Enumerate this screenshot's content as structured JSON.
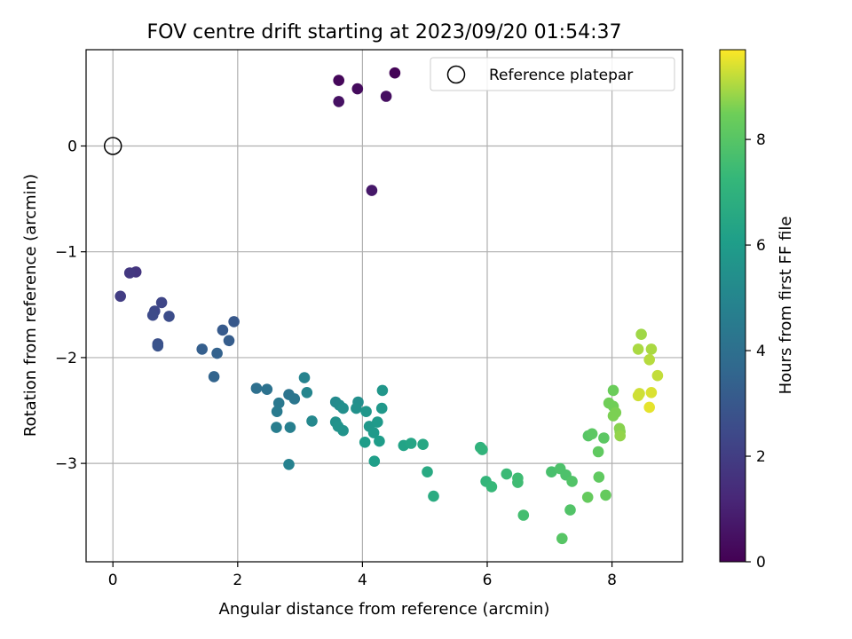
{
  "chart_data": {
    "type": "scatter",
    "title": "FOV centre drift starting at 2023/09/20 01:54:37",
    "xlabel": "Angular distance from reference (arcmin)",
    "ylabel": "Rotation from reference (arcmin)",
    "xlim": [
      -0.43,
      9.13
    ],
    "ylim": [
      -3.93,
      0.91
    ],
    "xticks": [
      0,
      2,
      4,
      6,
      8
    ],
    "yticks": [
      0,
      -1,
      -2,
      -3
    ],
    "xtick_labels": [
      "0",
      "2",
      "4",
      "6",
      "8"
    ],
    "ytick_labels": [
      "0",
      "−1",
      "−2",
      "−3"
    ],
    "grid": true,
    "legend": {
      "placement": "top-right",
      "entries": [
        "Reference platepar"
      ]
    },
    "reference_point": {
      "x": 0,
      "y": 0,
      "label": "Reference platepar"
    },
    "colorbar": {
      "label": "Hours from first FF file",
      "range": [
        0,
        9.7
      ],
      "ticks": [
        0,
        2,
        4,
        6,
        8
      ],
      "tick_labels": [
        "0",
        "2",
        "4",
        "6",
        "8"
      ],
      "colormap": "viridis"
    },
    "points": [
      [
        4.52,
        0.69,
        0.1
      ],
      [
        3.62,
        0.62,
        0.2
      ],
      [
        3.92,
        0.54,
        0.3
      ],
      [
        4.38,
        0.47,
        0.4
      ],
      [
        3.62,
        0.42,
        0.5
      ],
      [
        4.15,
        -0.42,
        0.7
      ],
      [
        0.37,
        -1.19,
        1.7
      ],
      [
        0.27,
        -1.2,
        1.8
      ],
      [
        0.12,
        -1.42,
        2.0
      ],
      [
        0.78,
        -1.48,
        2.3
      ],
      [
        0.67,
        -1.56,
        2.4
      ],
      [
        0.64,
        -1.6,
        2.5
      ],
      [
        0.9,
        -1.61,
        2.6
      ],
      [
        0.72,
        -1.87,
        2.7
      ],
      [
        0.72,
        -1.89,
        2.8
      ],
      [
        1.94,
        -1.66,
        3.0
      ],
      [
        1.76,
        -1.74,
        3.1
      ],
      [
        1.86,
        -1.84,
        3.2
      ],
      [
        1.43,
        -1.92,
        3.3
      ],
      [
        1.67,
        -1.96,
        3.4
      ],
      [
        1.62,
        -2.18,
        3.5
      ],
      [
        2.3,
        -2.29,
        4.0
      ],
      [
        2.47,
        -2.3,
        4.1
      ],
      [
        2.82,
        -2.35,
        4.2
      ],
      [
        2.91,
        -2.39,
        4.3
      ],
      [
        2.66,
        -2.43,
        4.4
      ],
      [
        2.63,
        -2.51,
        4.5
      ],
      [
        2.62,
        -2.66,
        4.6
      ],
      [
        2.84,
        -2.66,
        4.7
      ],
      [
        2.82,
        -3.01,
        4.8
      ],
      [
        3.07,
        -2.19,
        4.9
      ],
      [
        3.11,
        -2.33,
        5.0
      ],
      [
        3.19,
        -2.6,
        5.1
      ],
      [
        3.57,
        -2.42,
        5.2
      ],
      [
        3.63,
        -2.45,
        5.3
      ],
      [
        3.69,
        -2.48,
        5.4
      ],
      [
        3.93,
        -2.42,
        5.4
      ],
      [
        3.9,
        -2.48,
        5.5
      ],
      [
        3.57,
        -2.61,
        5.5
      ],
      [
        3.61,
        -2.65,
        5.6
      ],
      [
        3.69,
        -2.69,
        5.6
      ],
      [
        4.06,
        -2.51,
        5.7
      ],
      [
        4.32,
        -2.31,
        5.7
      ],
      [
        4.31,
        -2.48,
        5.8
      ],
      [
        4.11,
        -2.65,
        5.8
      ],
      [
        4.24,
        -2.61,
        5.9
      ],
      [
        4.18,
        -2.71,
        5.9
      ],
      [
        4.04,
        -2.8,
        6.0
      ],
      [
        4.27,
        -2.79,
        6.0
      ],
      [
        4.19,
        -2.98,
        6.1
      ],
      [
        4.66,
        -2.83,
        6.3
      ],
      [
        4.78,
        -2.81,
        6.4
      ],
      [
        4.97,
        -2.82,
        6.5
      ],
      [
        5.04,
        -3.08,
        6.6
      ],
      [
        5.14,
        -3.31,
        6.7
      ],
      [
        5.89,
        -2.85,
        7.0
      ],
      [
        5.92,
        -2.87,
        7.1
      ],
      [
        5.98,
        -3.17,
        7.2
      ],
      [
        6.07,
        -3.22,
        7.3
      ],
      [
        6.31,
        -3.1,
        7.4
      ],
      [
        6.49,
        -3.14,
        7.5
      ],
      [
        6.49,
        -3.18,
        7.5
      ],
      [
        6.58,
        -3.49,
        7.6
      ],
      [
        7.03,
        -3.08,
        7.7
      ],
      [
        7.17,
        -3.05,
        7.8
      ],
      [
        7.26,
        -3.11,
        7.8
      ],
      [
        7.36,
        -3.17,
        7.9
      ],
      [
        7.33,
        -3.44,
        7.9
      ],
      [
        7.2,
        -3.71,
        8.0
      ],
      [
        7.62,
        -2.74,
        8.0
      ],
      [
        7.68,
        -2.72,
        8.1
      ],
      [
        7.87,
        -2.76,
        8.1
      ],
      [
        7.78,
        -2.89,
        8.2
      ],
      [
        7.79,
        -3.13,
        8.2
      ],
      [
        7.61,
        -3.32,
        8.3
      ],
      [
        7.9,
        -3.3,
        8.3
      ],
      [
        8.02,
        -2.31,
        8.4
      ],
      [
        7.95,
        -2.43,
        8.5
      ],
      [
        8.02,
        -2.46,
        8.5
      ],
      [
        8.06,
        -2.52,
        8.6
      ],
      [
        8.02,
        -2.55,
        8.6
      ],
      [
        8.12,
        -2.67,
        8.7
      ],
      [
        8.13,
        -2.7,
        8.7
      ],
      [
        8.13,
        -2.74,
        8.8
      ],
      [
        8.47,
        -1.78,
        8.9
      ],
      [
        8.42,
        -1.92,
        9.0
      ],
      [
        8.63,
        -1.92,
        9.0
      ],
      [
        8.6,
        -2.02,
        9.1
      ],
      [
        8.73,
        -2.17,
        9.2
      ],
      [
        8.44,
        -2.34,
        9.3
      ],
      [
        8.42,
        -2.36,
        9.3
      ],
      [
        8.63,
        -2.33,
        9.4
      ],
      [
        8.6,
        -2.47,
        9.5
      ]
    ]
  }
}
